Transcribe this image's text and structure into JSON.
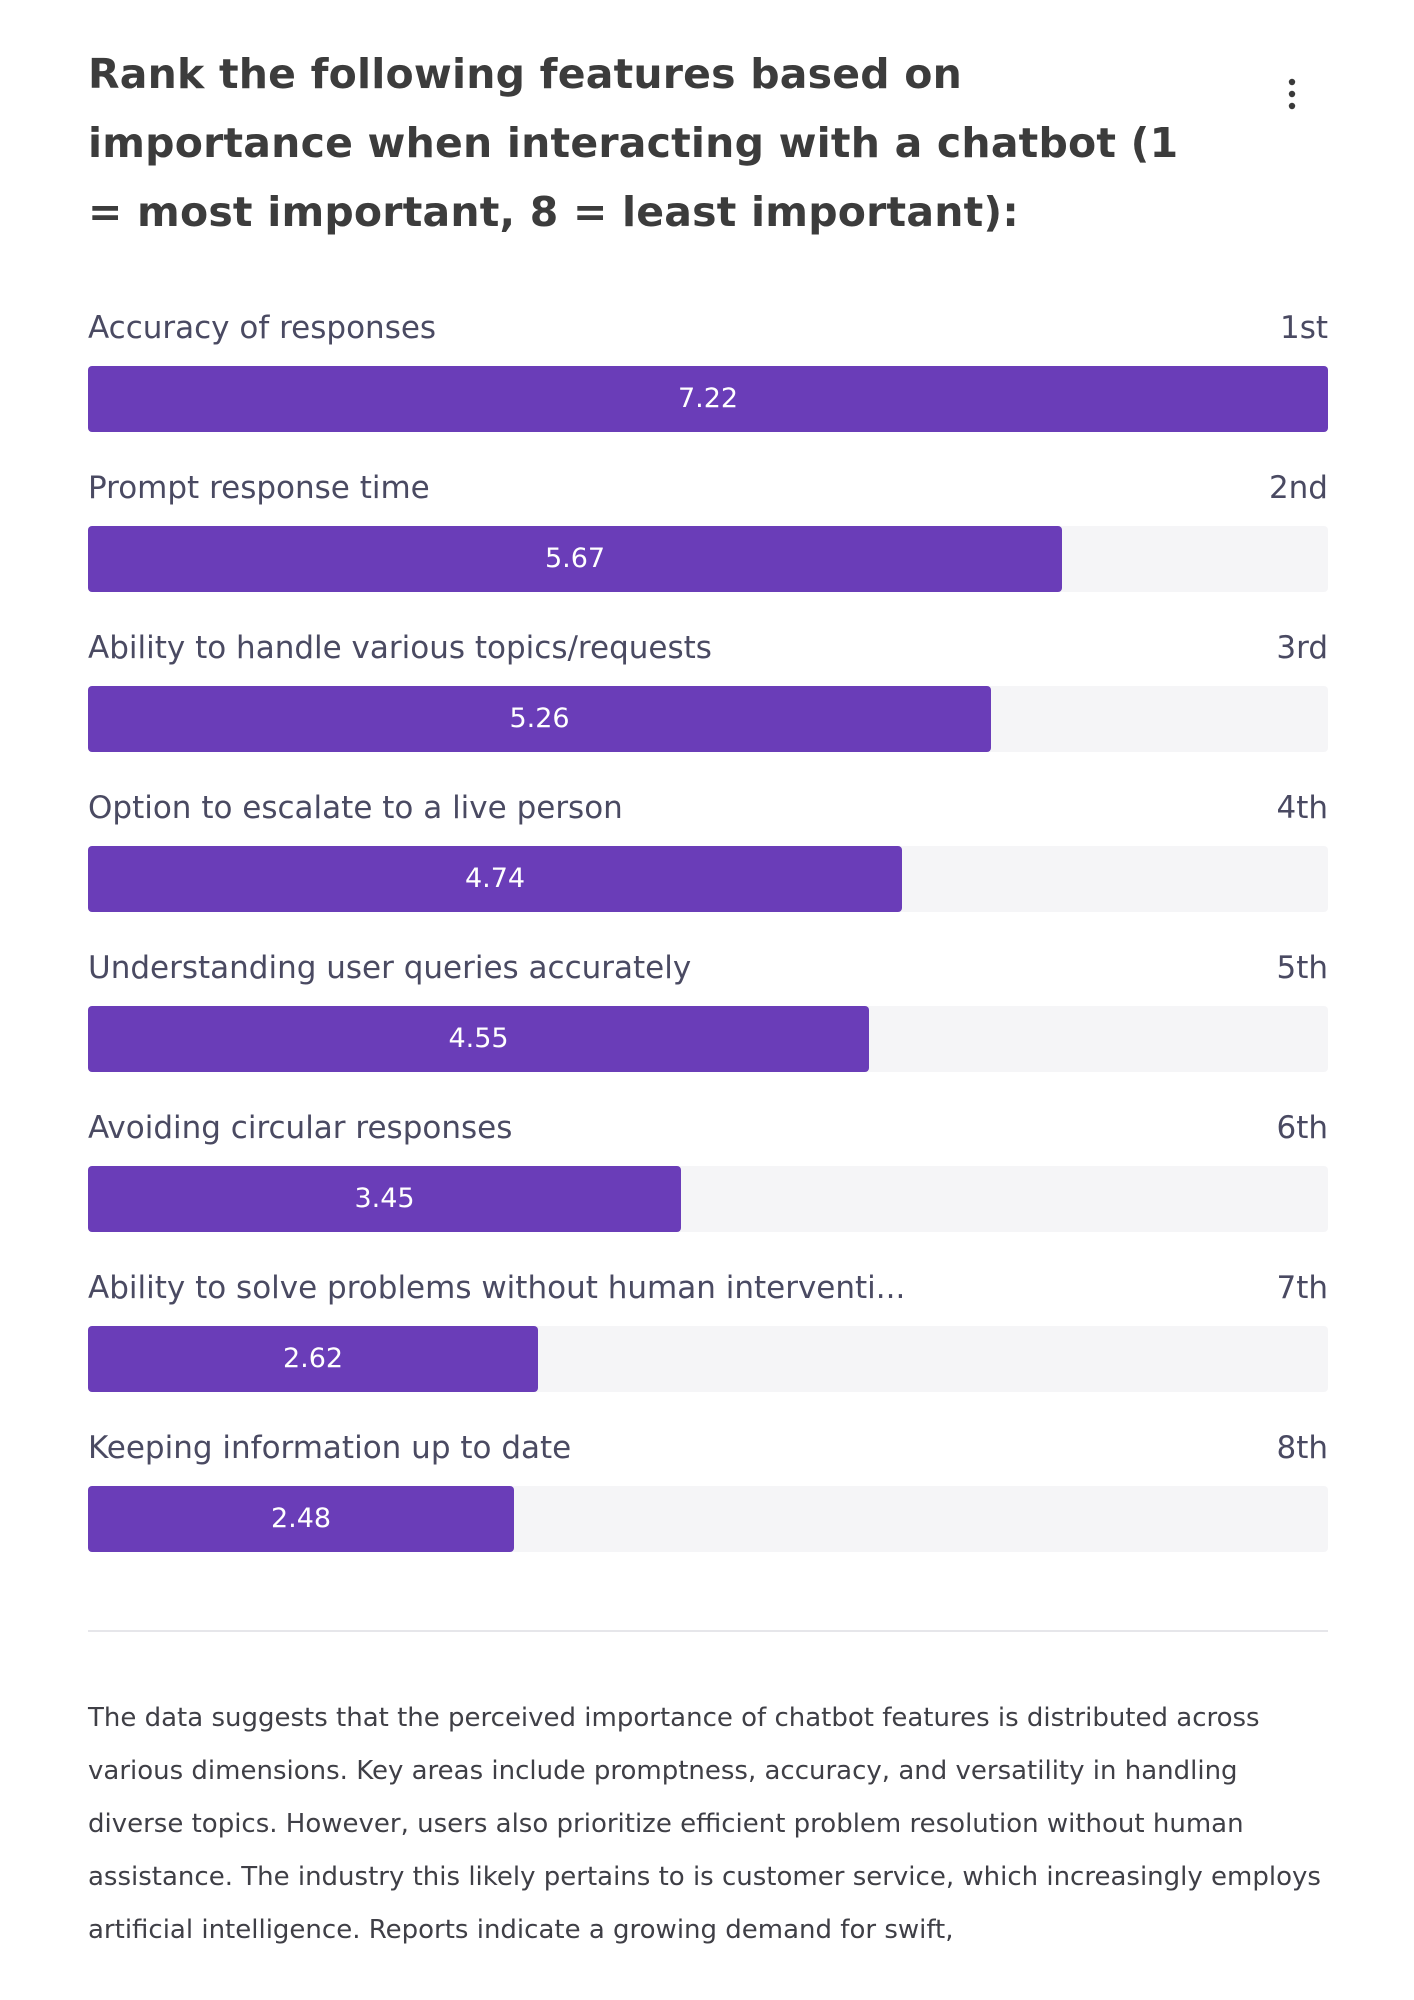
{
  "title": "Rank the following features based on importance when interacting with a chatbot (1 = most important, 8 = least important):",
  "icons": {
    "menu": "kebab-menu-icon"
  },
  "colors": {
    "bar": "#6a3db8",
    "track": "#f5f5f7",
    "text": "#3a3a3a"
  },
  "chart_data": {
    "type": "bar",
    "orientation": "horizontal",
    "title": "Rank the following features based on importance when interacting with a chatbot (1 = most important, 8 = least important):",
    "categories": [
      "Accuracy of responses",
      "Prompt response time",
      "Ability to handle various topics/requests",
      "Option to escalate to a live person",
      "Understanding user queries accurately",
      "Avoiding circular responses",
      "Ability to solve problems without human interventi...",
      "Keeping information up to date"
    ],
    "ranks": [
      "1st",
      "2nd",
      "3rd",
      "4th",
      "5th",
      "6th",
      "7th",
      "8th"
    ],
    "values": [
      7.22,
      5.67,
      5.26,
      4.74,
      4.55,
      3.45,
      2.62,
      2.48
    ],
    "value_labels": [
      "7.22",
      "5.67",
      "5.26",
      "4.74",
      "4.55",
      "3.45",
      "2.62",
      "2.48"
    ],
    "xlim": [
      0,
      7.22
    ],
    "grid": false,
    "legend": "none"
  },
  "summary": "The data suggests that the perceived importance of chatbot features is distributed across various dimensions. Key areas include promptness, accuracy, and versatility in handling diverse topics. However, users also prioritize efficient problem resolution without human assistance. The industry this likely pertains to is customer service, which increasingly employs artificial intelligence. Reports indicate a growing demand for swift,"
}
